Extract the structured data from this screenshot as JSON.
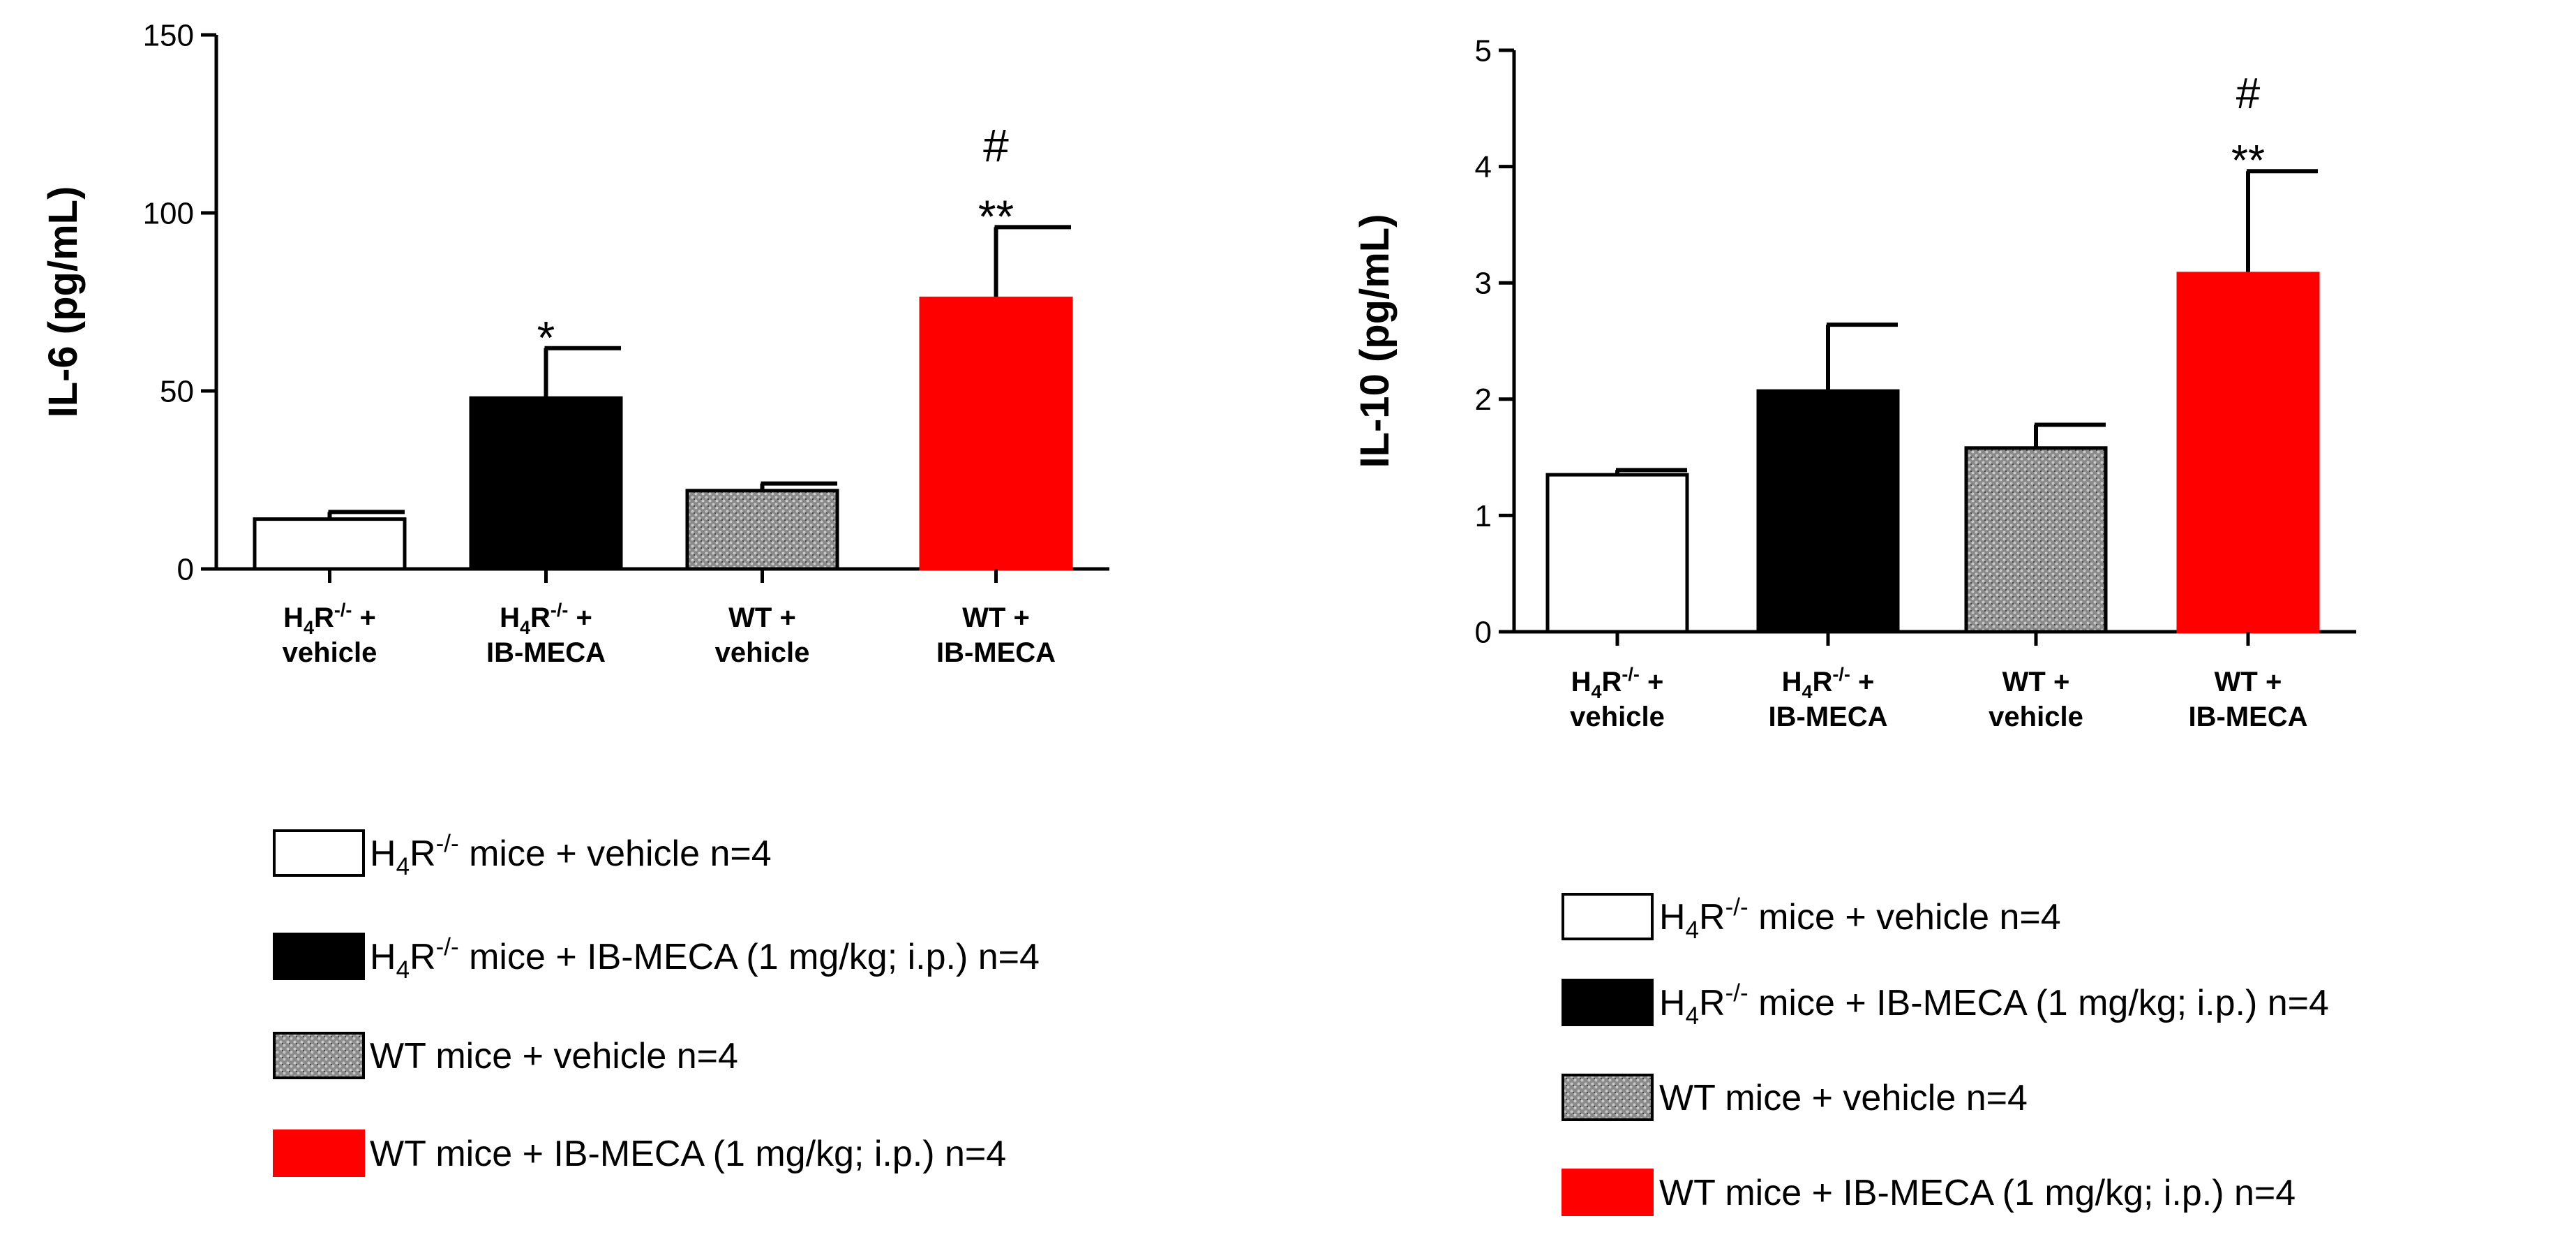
{
  "chart_data": [
    {
      "type": "bar",
      "title": "",
      "xlabel": "",
      "ylabel": "IL-6 (pg/mL)",
      "ylim": [
        0,
        150
      ],
      "yticks": [
        "0",
        "50",
        "100",
        "150"
      ],
      "categories": [
        {
          "line1": "H4R-/- +",
          "line2": "vehicle"
        },
        {
          "line1": "H4R-/- +",
          "line2": "IB-MECA"
        },
        {
          "line1": "WT +",
          "line2": "vehicle"
        },
        {
          "line1": "WT +",
          "line2": "IB-MECA"
        }
      ],
      "values": [
        14,
        48,
        22,
        76
      ],
      "errors": [
        2,
        14,
        2,
        20
      ],
      "annotations": [
        {
          "category": 1,
          "lines": [
            "*"
          ]
        },
        {
          "category": 3,
          "lines": [
            "#",
            "**"
          ]
        }
      ],
      "legend": [
        {
          "label": "H4R-/- mice + vehicle n=4",
          "fill": "white"
        },
        {
          "label": "H4R-/- mice + IB-MECA (1 mg/kg; i.p.) n=4",
          "fill": "black"
        },
        {
          "label": "WT mice + vehicle n=4",
          "fill": "pattern"
        },
        {
          "label": "WT mice + IB-MECA (1 mg/kg; i.p.) n=4",
          "fill": "red"
        }
      ]
    },
    {
      "type": "bar",
      "title": "",
      "xlabel": "",
      "ylabel": "IL-10 (pg/mL)",
      "ylim": [
        0,
        5
      ],
      "yticks": [
        "0",
        "1",
        "2",
        "3",
        "4",
        "5"
      ],
      "categories": [
        {
          "line1": "H4R-/- +",
          "line2": "vehicle"
        },
        {
          "line1": "H4R-/- +",
          "line2": "IB-MECA"
        },
        {
          "line1": "WT +",
          "line2": "vehicle"
        },
        {
          "line1": "WT +",
          "line2": "IB-MECA"
        }
      ],
      "values": [
        1.35,
        2.07,
        1.58,
        3.08
      ],
      "errors": [
        0.04,
        0.57,
        0.2,
        0.88
      ],
      "annotations": [
        {
          "category": 3,
          "lines": [
            "#",
            "**"
          ]
        }
      ],
      "legend": [
        {
          "label": "H4R-/- mice + vehicle n=4",
          "fill": "white"
        },
        {
          "label": "H4R-/- mice + IB-MECA (1 mg/kg; i.p.) n=4",
          "fill": "black"
        },
        {
          "label": "WT mice + vehicle n=4",
          "fill": "pattern"
        },
        {
          "label": "WT mice + IB-MECA (1 mg/kg; i.p.) n=4",
          "fill": "red"
        }
      ]
    }
  ],
  "colors": {
    "white": "#ffffff",
    "black": "#000000",
    "red": "#ff0000",
    "pattern_base": "#8a8a8a",
    "pattern_dot": "#c8c8c8",
    "pattern_dark": "#4a4a4a"
  }
}
